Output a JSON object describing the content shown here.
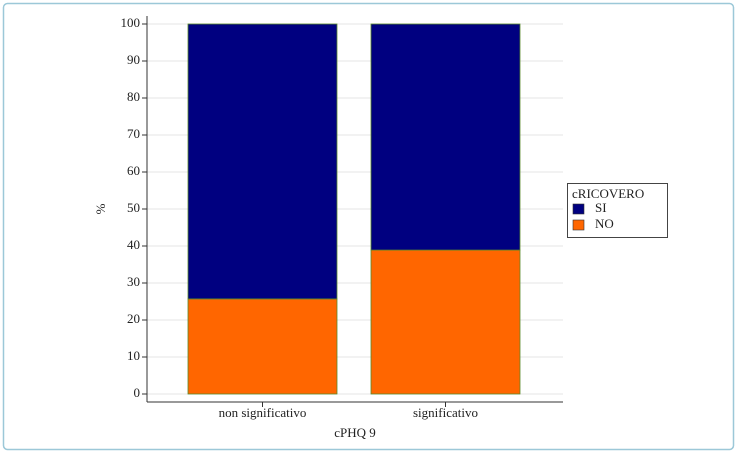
{
  "chart_data": {
    "type": "stacked_bar",
    "categories": [
      "non significativo",
      "significativo"
    ],
    "series": [
      {
        "name": "NO",
        "color": "#ff6600",
        "values": [
          25.7,
          38.9
        ]
      },
      {
        "name": "SI",
        "color": "#000080",
        "values": [
          74.3,
          61.1
        ]
      }
    ],
    "xlabel": "cPHQ 9",
    "ylabel": "%",
    "ylim": [
      0,
      100
    ],
    "yticks": [
      0,
      10,
      20,
      30,
      40,
      50,
      60,
      70,
      80,
      90,
      100
    ],
    "grid": true,
    "legend_title": "cRICOVERO",
    "legend_position": "right"
  }
}
